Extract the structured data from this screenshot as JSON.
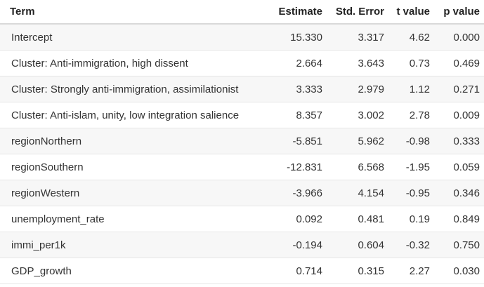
{
  "table": {
    "headers": {
      "term": "Term",
      "estimate": "Estimate",
      "std_error": "Std. Error",
      "t_value": "t value",
      "p_value": "p value"
    },
    "rows": [
      {
        "term": "Intercept",
        "estimate": "15.330",
        "std_error": "3.317",
        "t_value": "4.62",
        "p_value": "0.000"
      },
      {
        "term": "Cluster: Anti-immigration, high dissent",
        "estimate": "2.664",
        "std_error": "3.643",
        "t_value": "0.73",
        "p_value": "0.469"
      },
      {
        "term": "Cluster: Strongly anti-immigration, assimilationist",
        "estimate": "3.333",
        "std_error": "2.979",
        "t_value": "1.12",
        "p_value": "0.271"
      },
      {
        "term": "Cluster: Anti-islam, unity, low integration salience",
        "estimate": "8.357",
        "std_error": "3.002",
        "t_value": "2.78",
        "p_value": "0.009"
      },
      {
        "term": "regionNorthern",
        "estimate": "-5.851",
        "std_error": "5.962",
        "t_value": "-0.98",
        "p_value": "0.333"
      },
      {
        "term": "regionSouthern",
        "estimate": "-12.831",
        "std_error": "6.568",
        "t_value": "-1.95",
        "p_value": "0.059"
      },
      {
        "term": "regionWestern",
        "estimate": "-3.966",
        "std_error": "4.154",
        "t_value": "-0.95",
        "p_value": "0.346"
      },
      {
        "term": "unemployment_rate",
        "estimate": "0.092",
        "std_error": "0.481",
        "t_value": "0.19",
        "p_value": "0.849"
      },
      {
        "term": "immi_per1k",
        "estimate": "-0.194",
        "std_error": "0.604",
        "t_value": "-0.32",
        "p_value": "0.750"
      },
      {
        "term": "GDP_growth",
        "estimate": "0.714",
        "std_error": "0.315",
        "t_value": "2.27",
        "p_value": "0.030"
      }
    ]
  }
}
